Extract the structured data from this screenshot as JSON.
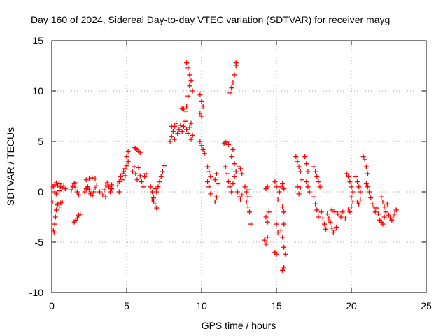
{
  "chart_data": {
    "type": "scatter",
    "title": "Day 160 of 2024, Sidereal Day-to-day VTEC variation (SDTVAR) for receiver mayg",
    "xlabel": "GPS time / hours",
    "ylabel": "SDTVAR / TECUs",
    "xlim": [
      0,
      25
    ],
    "ylim": [
      -10,
      15
    ],
    "xticks": [
      0,
      5,
      10,
      15,
      20,
      25
    ],
    "yticks": [
      -10,
      -5,
      0,
      5,
      10,
      15
    ],
    "xtick_labels": [
      "0",
      "5",
      "10",
      "15",
      "20",
      "25"
    ],
    "ytick_labels": [
      "-10",
      "-5",
      "0",
      "5",
      "10",
      "15"
    ],
    "grid": true,
    "marker": "+",
    "marker_color": "#ff0000",
    "series": [
      {
        "name": "SDTVAR",
        "points": [
          [
            0.05,
            -1.0
          ],
          [
            0.1,
            -3.8
          ],
          [
            0.15,
            -4.0
          ],
          [
            0.2,
            -3.2
          ],
          [
            0.25,
            -2.5
          ],
          [
            0.3,
            -1.8
          ],
          [
            0.35,
            -1.3
          ],
          [
            0.4,
            -1.2
          ],
          [
            0.5,
            -1.5
          ],
          [
            0.6,
            -1.1
          ],
          [
            0.7,
            -1.0
          ],
          [
            0.1,
            0.5
          ],
          [
            0.2,
            0.7
          ],
          [
            0.3,
            0.9
          ],
          [
            0.4,
            0.6
          ],
          [
            0.5,
            0.8
          ],
          [
            0.6,
            0.5
          ],
          [
            0.7,
            0.4
          ],
          [
            0.8,
            0.6
          ],
          [
            0.9,
            0.3
          ],
          [
            0.2,
            0.0
          ],
          [
            0.3,
            -0.2
          ],
          [
            0.5,
            0.1
          ],
          [
            1.3,
            0.2
          ],
          [
            1.4,
            0.5
          ],
          [
            1.5,
            0.8
          ],
          [
            1.6,
            0.4
          ],
          [
            1.7,
            0.0
          ],
          [
            1.8,
            -0.3
          ],
          [
            1.4,
            0.6
          ],
          [
            1.6,
            0.9
          ],
          [
            1.5,
            -3.0
          ],
          [
            1.6,
            -2.8
          ],
          [
            1.7,
            -2.6
          ],
          [
            1.8,
            -2.3
          ],
          [
            1.9,
            -2.2
          ],
          [
            2.2,
            0.0
          ],
          [
            2.3,
            0.3
          ],
          [
            2.4,
            0.5
          ],
          [
            2.5,
            0.2
          ],
          [
            2.6,
            -0.2
          ],
          [
            2.7,
            -0.4
          ],
          [
            2.8,
            0.0
          ],
          [
            2.9,
            0.4
          ],
          [
            2.3,
            1.2
          ],
          [
            2.5,
            1.3
          ],
          [
            2.7,
            1.4
          ],
          [
            2.9,
            1.3
          ],
          [
            3.0,
            0.6
          ],
          [
            3.2,
            0.0
          ],
          [
            3.4,
            -0.3
          ],
          [
            3.5,
            0.2
          ],
          [
            3.6,
            0.6
          ],
          [
            3.7,
            0.9
          ],
          [
            3.8,
            0.5
          ],
          [
            3.9,
            0.0
          ],
          [
            4.0,
            0.3
          ],
          [
            4.0,
            0.7
          ],
          [
            3.6,
            -0.5
          ],
          [
            4.4,
            0.6
          ],
          [
            4.5,
            1.0
          ],
          [
            4.6,
            1.5
          ],
          [
            4.7,
            1.8
          ],
          [
            4.8,
            2.0
          ],
          [
            4.9,
            2.3
          ],
          [
            5.0,
            2.6
          ],
          [
            5.1,
            3.0
          ],
          [
            4.5,
            0.0
          ],
          [
            4.7,
            1.2
          ],
          [
            4.9,
            1.6
          ],
          [
            5.0,
            3.5
          ],
          [
            5.1,
            4.0
          ],
          [
            5.5,
            4.4
          ],
          [
            5.6,
            4.3
          ],
          [
            5.7,
            4.2
          ],
          [
            5.8,
            4.0
          ],
          [
            5.9,
            3.9
          ],
          [
            5.4,
            2.0
          ],
          [
            5.5,
            2.5
          ],
          [
            5.6,
            1.8
          ],
          [
            5.7,
            1.2
          ],
          [
            5.8,
            2.4
          ],
          [
            5.9,
            1.6
          ],
          [
            6.0,
            1.0
          ],
          [
            6.1,
            0.5
          ],
          [
            6.2,
            1.5
          ],
          [
            6.3,
            1.8
          ],
          [
            6.6,
            0.5
          ],
          [
            6.7,
            0.0
          ],
          [
            6.8,
            -0.6
          ],
          [
            6.9,
            -1.2
          ],
          [
            7.0,
            -1.6
          ],
          [
            6.7,
            -0.8
          ],
          [
            6.8,
            -1.0
          ],
          [
            6.9,
            0.3
          ],
          [
            7.0,
            0.0
          ],
          [
            7.1,
            0.5
          ],
          [
            7.2,
            1.0
          ],
          [
            7.3,
            1.5
          ],
          [
            7.4,
            2.0
          ],
          [
            7.5,
            2.6
          ],
          [
            7.9,
            5.0
          ],
          [
            8.0,
            5.5
          ],
          [
            8.1,
            6.0
          ],
          [
            8.2,
            6.5
          ],
          [
            8.3,
            6.8
          ],
          [
            8.4,
            5.8
          ],
          [
            8.5,
            6.2
          ],
          [
            8.6,
            6.6
          ],
          [
            8.0,
            6.5
          ],
          [
            8.2,
            5.2
          ],
          [
            8.7,
            8.3
          ],
          [
            8.8,
            8.2
          ],
          [
            8.9,
            8.0
          ],
          [
            9.0,
            8.5
          ],
          [
            9.1,
            9.5
          ],
          [
            9.2,
            10.5
          ],
          [
            9.3,
            11.0
          ],
          [
            9.4,
            10.0
          ],
          [
            9.0,
            12.8
          ],
          [
            9.1,
            12.3
          ],
          [
            9.2,
            11.6
          ],
          [
            8.7,
            6.0
          ],
          [
            8.8,
            6.5
          ],
          [
            8.9,
            7.0
          ],
          [
            9.0,
            6.2
          ],
          [
            9.1,
            5.8
          ],
          [
            9.2,
            6.4
          ],
          [
            9.3,
            6.8
          ],
          [
            9.4,
            5.6
          ],
          [
            9.3,
            5.2
          ],
          [
            9.9,
            9.6
          ],
          [
            10.0,
            9.0
          ],
          [
            10.1,
            8.5
          ],
          [
            9.9,
            7.8
          ],
          [
            10.0,
            7.5
          ],
          [
            9.9,
            5.0
          ],
          [
            10.0,
            4.6
          ],
          [
            10.1,
            4.2
          ],
          [
            10.2,
            3.8
          ],
          [
            10.4,
            2.5
          ],
          [
            10.5,
            2.0
          ],
          [
            10.6,
            1.5
          ],
          [
            10.4,
            1.0
          ],
          [
            10.5,
            0.5
          ],
          [
            10.6,
            -0.2
          ],
          [
            10.9,
            1.2
          ],
          [
            11.0,
            1.8
          ],
          [
            11.1,
            0.8
          ],
          [
            11.0,
            -0.5
          ],
          [
            10.9,
            -1.0
          ],
          [
            11.5,
            4.8
          ],
          [
            11.6,
            4.9
          ],
          [
            11.7,
            5.0
          ],
          [
            11.8,
            4.7
          ],
          [
            11.6,
            2.5
          ],
          [
            11.7,
            1.8
          ],
          [
            11.8,
            1.0
          ],
          [
            11.9,
            0.5
          ],
          [
            12.0,
            0.0
          ],
          [
            12.1,
            0.8
          ],
          [
            12.2,
            1.5
          ],
          [
            11.9,
            9.8
          ],
          [
            12.0,
            10.3
          ],
          [
            12.1,
            10.8
          ],
          [
            12.2,
            11.6
          ],
          [
            12.3,
            12.5
          ],
          [
            12.3,
            12.8
          ],
          [
            12.0,
            3.5
          ],
          [
            12.1,
            4.2
          ],
          [
            12.2,
            2.8
          ],
          [
            12.3,
            2.0
          ],
          [
            12.5,
            2.5
          ],
          [
            12.6,
            2.3
          ],
          [
            12.7,
            1.8
          ],
          [
            12.4,
            0.0
          ],
          [
            12.5,
            -0.5
          ],
          [
            12.6,
            -0.8
          ],
          [
            12.7,
            -0.3
          ],
          [
            12.9,
            0.5
          ],
          [
            13.0,
            0.0
          ],
          [
            13.1,
            -0.5
          ],
          [
            13.0,
            -1.0
          ],
          [
            13.1,
            -1.5
          ],
          [
            13.2,
            -2.0
          ],
          [
            13.3,
            -3.2
          ],
          [
            13.1,
            0.2
          ],
          [
            14.3,
            0.3
          ],
          [
            14.4,
            0.5
          ],
          [
            14.3,
            -2.5
          ],
          [
            14.4,
            -3.0
          ],
          [
            14.5,
            -2.0
          ],
          [
            14.2,
            -4.8
          ],
          [
            14.3,
            -5.2
          ],
          [
            14.4,
            -4.5
          ],
          [
            14.9,
            1.0
          ],
          [
            15.0,
            0.5
          ],
          [
            15.1,
            -0.8
          ],
          [
            15.2,
            0.0
          ],
          [
            15.3,
            0.5
          ],
          [
            15.4,
            0.8
          ],
          [
            15.5,
            0.3
          ],
          [
            15.4,
            -1.5
          ],
          [
            15.5,
            -2.0
          ],
          [
            15.0,
            -3.2
          ],
          [
            15.1,
            -4.0
          ],
          [
            14.9,
            -6.0
          ],
          [
            15.0,
            -6.2
          ],
          [
            15.3,
            -3.8
          ],
          [
            15.4,
            -4.5
          ],
          [
            15.5,
            -5.5
          ],
          [
            15.6,
            -6.2
          ],
          [
            15.5,
            -7.5
          ],
          [
            15.4,
            -7.8
          ],
          [
            15.5,
            -3.2
          ],
          [
            16.3,
            3.5
          ],
          [
            16.4,
            3.0
          ],
          [
            16.5,
            2.5
          ],
          [
            16.6,
            2.0
          ],
          [
            16.7,
            1.2
          ],
          [
            16.4,
            0.5
          ],
          [
            16.5,
            -0.2
          ],
          [
            16.6,
            0.4
          ],
          [
            16.9,
            3.5
          ],
          [
            17.0,
            2.8
          ],
          [
            17.1,
            2.0
          ],
          [
            17.0,
            1.0
          ],
          [
            17.1,
            0.5
          ],
          [
            17.2,
            0.0
          ],
          [
            17.5,
            2.5
          ],
          [
            17.6,
            2.0
          ],
          [
            17.7,
            1.5
          ],
          [
            17.8,
            1.0
          ],
          [
            17.9,
            0.5
          ],
          [
            17.5,
            -0.5
          ],
          [
            17.6,
            -1.2
          ],
          [
            17.7,
            -1.8
          ],
          [
            17.8,
            -2.5
          ],
          [
            18.0,
            -2.0
          ],
          [
            18.1,
            -2.6
          ],
          [
            18.2,
            -3.2
          ],
          [
            18.3,
            -3.7
          ],
          [
            18.4,
            -2.2
          ],
          [
            18.5,
            -2.6
          ],
          [
            18.6,
            -3.0
          ],
          [
            18.7,
            -3.6
          ],
          [
            18.8,
            -4.0
          ],
          [
            18.9,
            -3.8
          ],
          [
            19.0,
            -3.5
          ],
          [
            18.7,
            -1.8
          ],
          [
            18.9,
            -2.0
          ],
          [
            19.1,
            -2.2
          ],
          [
            19.3,
            -2.5
          ],
          [
            19.4,
            -2.0
          ],
          [
            19.5,
            -1.9
          ],
          [
            19.6,
            -2.6
          ],
          [
            19.7,
            1.8
          ],
          [
            19.8,
            1.5
          ],
          [
            19.9,
            1.0
          ],
          [
            20.0,
            0.5
          ],
          [
            20.1,
            0.0
          ],
          [
            20.0,
            -0.5
          ],
          [
            20.1,
            -1.0
          ],
          [
            20.0,
            -1.5
          ],
          [
            19.9,
            -2.0
          ],
          [
            19.8,
            -1.7
          ],
          [
            20.3,
            1.5
          ],
          [
            20.4,
            1.0
          ],
          [
            20.5,
            0.5
          ],
          [
            20.6,
            0.0
          ],
          [
            20.4,
            -1.0
          ],
          [
            20.5,
            -1.2
          ],
          [
            20.6,
            -0.8
          ],
          [
            20.8,
            3.5
          ],
          [
            20.9,
            3.2
          ],
          [
            21.0,
            2.5
          ],
          [
            21.1,
            1.8
          ],
          [
            21.0,
            0.8
          ],
          [
            21.1,
            0.5
          ],
          [
            21.2,
            0.0
          ],
          [
            21.3,
            -0.6
          ],
          [
            21.4,
            -1.2
          ],
          [
            21.5,
            -1.5
          ],
          [
            21.6,
            -2.0
          ],
          [
            21.7,
            -1.6
          ],
          [
            21.8,
            -2.2
          ],
          [
            21.9,
            -2.8
          ],
          [
            22.0,
            -3.0
          ],
          [
            22.1,
            -3.2
          ],
          [
            22.2,
            -2.5
          ],
          [
            22.0,
            -0.5
          ],
          [
            22.1,
            -1.0
          ],
          [
            22.2,
            -1.5
          ],
          [
            22.3,
            -2.0
          ],
          [
            22.4,
            -1.2
          ],
          [
            22.5,
            -2.3
          ],
          [
            22.6,
            -2.6
          ],
          [
            22.7,
            -2.8
          ],
          [
            22.8,
            -2.4
          ],
          [
            22.9,
            -2.2
          ],
          [
            23.0,
            -1.8
          ]
        ]
      }
    ]
  }
}
